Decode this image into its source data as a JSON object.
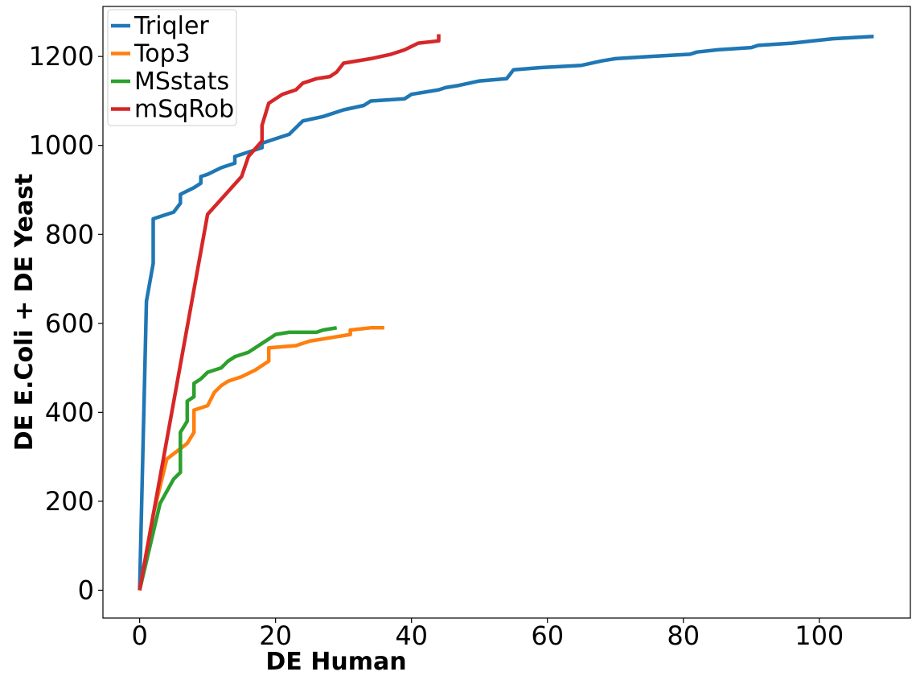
{
  "chart_data": {
    "type": "line",
    "title": "",
    "xlabel": "DE Human",
    "ylabel": "DE E.Coli + DE Yeast",
    "xlim": [
      -5.4,
      113.4
    ],
    "ylim": [
      -62.5,
      1312.5
    ],
    "xticks": [
      0,
      20,
      40,
      60,
      80,
      100
    ],
    "yticks": [
      0,
      200,
      400,
      600,
      800,
      1000,
      1200
    ],
    "grid": false,
    "legend": "top-left",
    "series": [
      {
        "name": "Triqler",
        "color": "#1f77b4",
        "points": [
          [
            0,
            0
          ],
          [
            1,
            650
          ],
          [
            2,
            735
          ],
          [
            2,
            835
          ],
          [
            5,
            850
          ],
          [
            6,
            870
          ],
          [
            6,
            890
          ],
          [
            8,
            905
          ],
          [
            9,
            915
          ],
          [
            9,
            930
          ],
          [
            10,
            935
          ],
          [
            12,
            950
          ],
          [
            14,
            960
          ],
          [
            14,
            975
          ],
          [
            18,
            995
          ],
          [
            18,
            1005
          ],
          [
            20,
            1015
          ],
          [
            22,
            1025
          ],
          [
            23,
            1040
          ],
          [
            24,
            1055
          ],
          [
            27,
            1065
          ],
          [
            30,
            1080
          ],
          [
            33,
            1090
          ],
          [
            34,
            1100
          ],
          [
            39,
            1105
          ],
          [
            40,
            1115
          ],
          [
            44,
            1125
          ],
          [
            45,
            1130
          ],
          [
            47,
            1135
          ],
          [
            50,
            1145
          ],
          [
            54,
            1150
          ],
          [
            55,
            1170
          ],
          [
            59,
            1175
          ],
          [
            65,
            1180
          ],
          [
            68,
            1190
          ],
          [
            70,
            1195
          ],
          [
            75,
            1200
          ],
          [
            81,
            1205
          ],
          [
            82,
            1210
          ],
          [
            85,
            1215
          ],
          [
            90,
            1220
          ],
          [
            91,
            1225
          ],
          [
            96,
            1230
          ],
          [
            102,
            1240
          ],
          [
            108,
            1245
          ]
        ]
      },
      {
        "name": "Top3",
        "color": "#ff7f0e",
        "points": [
          [
            0,
            0
          ],
          [
            2,
            170
          ],
          [
            4,
            295
          ],
          [
            7,
            330
          ],
          [
            8,
            355
          ],
          [
            8,
            405
          ],
          [
            10,
            415
          ],
          [
            11,
            445
          ],
          [
            12,
            460
          ],
          [
            13,
            470
          ],
          [
            15,
            480
          ],
          [
            17,
            495
          ],
          [
            19,
            515
          ],
          [
            19,
            545
          ],
          [
            23,
            550
          ],
          [
            25,
            560
          ],
          [
            27,
            565
          ],
          [
            31,
            575
          ],
          [
            31,
            585
          ],
          [
            34,
            590
          ],
          [
            36,
            590
          ]
        ]
      },
      {
        "name": "MSstats",
        "color": "#2ca02c",
        "points": [
          [
            0,
            0
          ],
          [
            3,
            195
          ],
          [
            5,
            250
          ],
          [
            6,
            265
          ],
          [
            6,
            355
          ],
          [
            7,
            380
          ],
          [
            7,
            425
          ],
          [
            8,
            435
          ],
          [
            8,
            465
          ],
          [
            9,
            475
          ],
          [
            10,
            490
          ],
          [
            12,
            500
          ],
          [
            13,
            515
          ],
          [
            14,
            525
          ],
          [
            16,
            535
          ],
          [
            17,
            545
          ],
          [
            18,
            555
          ],
          [
            19,
            565
          ],
          [
            20,
            575
          ],
          [
            22,
            580
          ],
          [
            26,
            580
          ],
          [
            27,
            585
          ],
          [
            29,
            590
          ]
        ]
      },
      {
        "name": "mSqRob",
        "color": "#d62728",
        "points": [
          [
            0,
            0
          ],
          [
            10,
            845
          ],
          [
            15,
            930
          ],
          [
            16,
            975
          ],
          [
            18,
            1010
          ],
          [
            18,
            1045
          ],
          [
            19,
            1095
          ],
          [
            21,
            1115
          ],
          [
            23,
            1125
          ],
          [
            24,
            1140
          ],
          [
            26,
            1150
          ],
          [
            28,
            1155
          ],
          [
            29,
            1165
          ],
          [
            30,
            1185
          ],
          [
            34,
            1195
          ],
          [
            37,
            1205
          ],
          [
            39,
            1215
          ],
          [
            41,
            1230
          ],
          [
            44,
            1235
          ],
          [
            44,
            1250
          ]
        ]
      }
    ]
  }
}
